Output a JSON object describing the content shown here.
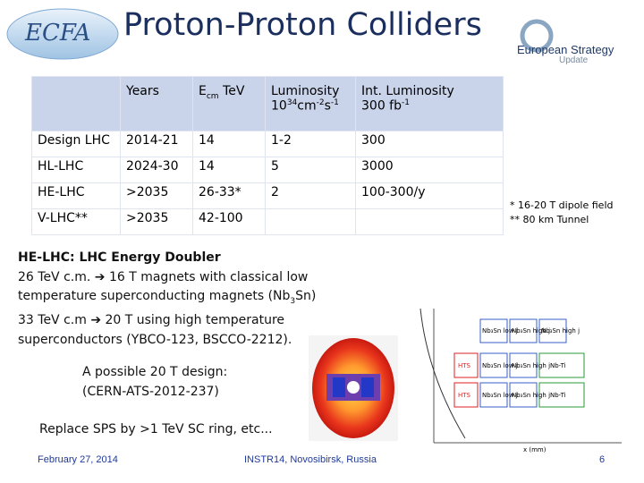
{
  "header": {
    "title": "Proton-Proton Colliders",
    "left_logo": "ECFA",
    "right_logo": {
      "line1": "European Strategy",
      "line2": "Update"
    }
  },
  "table": {
    "header": [
      {
        "text": "Years"
      },
      {
        "base": "E",
        "sub": "cm",
        "tail": " TeV"
      },
      {
        "line1": "Luminosity",
        "base": "10",
        "sup": "34",
        "unit1": "cm",
        "unit1_exp": "-2",
        "unit2": "s",
        "unit2_exp": "-1"
      },
      {
        "line1": "Int. Luminosity",
        "base": "300 fb",
        "sup": "-1"
      }
    ],
    "rows": [
      [
        "Design LHC",
        "2014-21",
        "14",
        "1-2",
        "300"
      ],
      [
        "HL-LHC",
        "2024-30",
        "14",
        "5",
        "3000"
      ],
      [
        "HE-LHC",
        ">2035",
        "26-33*",
        "2",
        "100-300/y"
      ],
      [
        "V-LHC**",
        ">2035",
        "42-100"
      ]
    ]
  },
  "notes": [
    "* 16-20 T dipole field",
    "** 80 km Tunnel"
  ],
  "body": {
    "heading": "HE-LHC: LHC Energy Doubler",
    "line1": "26 TeV c.m. ➔ 16 T magnets with classical low",
    "line2": {
      "before": "temperature superconducting magnets (Nb",
      "sub": "3",
      "after": "Sn)"
    },
    "line3": "33 TeV c.m ➔ 20 T using high temperature",
    "line4": "superconductors (YBCO-123, BSCCO-2212)."
  },
  "design": {
    "lines": [
      "A possible 20 T design:",
      "(CERN-ATS-2012-237)"
    ]
  },
  "replace": "Replace SPS by >1 TeV SC ring, etc...",
  "plot": {
    "labels": [
      "Nb₃Sn low j",
      "Nb₃Sn high j",
      "Nb₃Sn high j",
      "HTS",
      "Nb₃Sn low j",
      "Nb₃Sn high j",
      "Nb-Ti",
      "HTS",
      "Nb₃Sn low j",
      "Nb₃Sn high j",
      "Nb-Ti"
    ],
    "x_label": "x (mm)"
  },
  "footer": {
    "date": "February 27, 2014",
    "venue": "INSTR14, Novosibirsk, Russia",
    "page": "6"
  }
}
